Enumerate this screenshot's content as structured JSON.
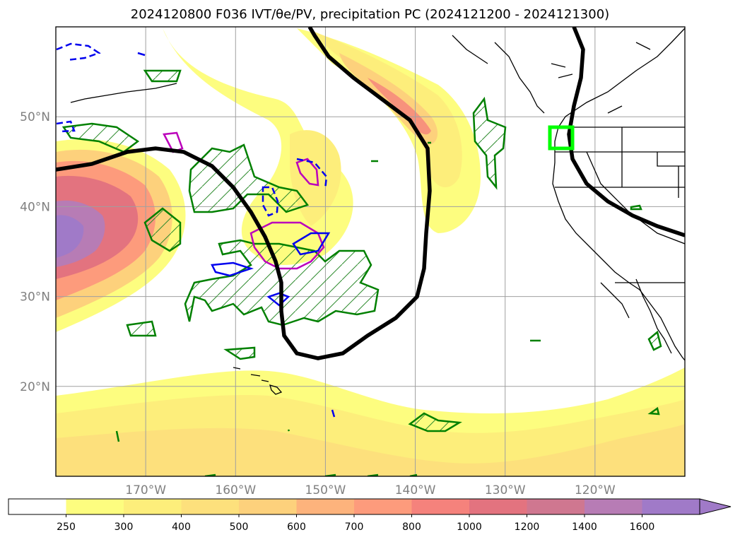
{
  "title": "2024120800 F036 IVT/θe/PV, precipitation PC (2024121200 - 2024121300)",
  "map": {
    "lon_range": [
      180,
      110
    ],
    "lat_range": [
      10,
      60
    ],
    "lat_ticks": [
      {
        "value": 50,
        "label": "50°N"
      },
      {
        "value": 40,
        "label": "40°N"
      },
      {
        "value": 30,
        "label": "30°N"
      },
      {
        "value": 20,
        "label": "20°N"
      }
    ],
    "lon_ticks": [
      {
        "value": 170,
        "label": "170°W"
      },
      {
        "value": 160,
        "label": "160°W"
      },
      {
        "value": 150,
        "label": "150°W"
      },
      {
        "value": 140,
        "label": "140°W"
      },
      {
        "value": 130,
        "label": "130°W"
      },
      {
        "value": 120,
        "label": "120°W"
      }
    ],
    "grid": true
  },
  "colorbar": {
    "levels": [
      "250",
      "300",
      "400",
      "500",
      "600",
      "700",
      "800",
      "1000",
      "1200",
      "1400",
      "1600"
    ],
    "colors": [
      "#ffffff",
      "#fdfd7f",
      "#fdee7b",
      "#fde07c",
      "#fdd17c",
      "#fdb37c",
      "#fd9b7c",
      "#f5827c",
      "#e3737f",
      "#cf7790",
      "#b77cb5",
      "#a07ac8"
    ],
    "extend": "max"
  },
  "overlays": {
    "ivt_shading": "yellow-to-purple",
    "theta_e_contour_color": "#000000",
    "precip_contour_color": "#008000",
    "pv_positive_color": "#bb00bb",
    "pv_negative_color": "#0000ee",
    "highlight_box_color": "#00ff00"
  }
}
